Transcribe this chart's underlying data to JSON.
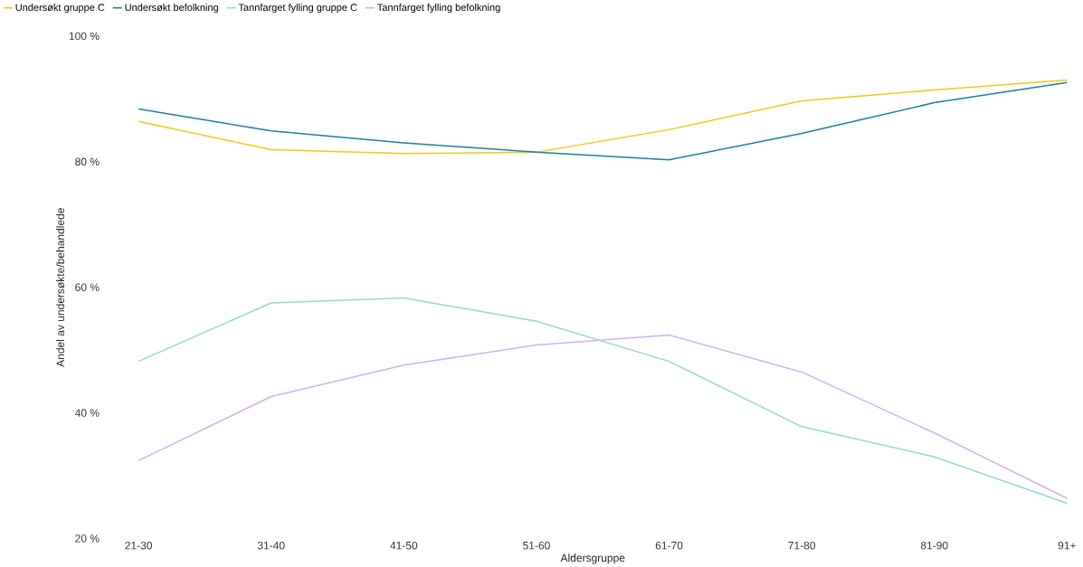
{
  "chart_data": {
    "type": "line",
    "xlabel": "Aldersgruppe",
    "ylabel": "Andel av undersøkte/behandlede",
    "categories": [
      "21-30",
      "31-40",
      "41-50",
      "51-60",
      "61-70",
      "71-80",
      "81-90",
      "91+"
    ],
    "series": [
      {
        "name": "Undersøkt gruppe C",
        "color": "#f2c811",
        "values": [
          86.4,
          81.9,
          81.3,
          81.5,
          85.1,
          89.7,
          91.4,
          93.0
        ]
      },
      {
        "name": "Undersøkt befolkning",
        "color": "#1f7ea6",
        "values": [
          88.4,
          84.9,
          83.0,
          81.5,
          80.3,
          84.5,
          89.4,
          92.6
        ]
      },
      {
        "name": "Tannfarget fylling gruppe C",
        "color": "#8fdcc8",
        "values": [
          48.2,
          57.5,
          58.3,
          54.6,
          48.2,
          37.8,
          33.0,
          25.6
        ]
      },
      {
        "name": "Tannfarget fylling befolkning",
        "color": "#d4b0ea",
        "values": [
          32.4,
          42.6,
          47.6,
          50.8,
          52.4,
          46.5,
          36.8,
          26.4
        ]
      }
    ],
    "ylim": [
      20,
      100
    ],
    "yticks": [
      {
        "value": 20,
        "label": "20 %"
      },
      {
        "value": 40,
        "label": "40 %"
      },
      {
        "value": 60,
        "label": "60 %"
      },
      {
        "value": 80,
        "label": "80 %"
      },
      {
        "value": 100,
        "label": "100 %"
      }
    ],
    "legend": "top left",
    "grid": false,
    "marker": "none",
    "line_style": "solid"
  }
}
